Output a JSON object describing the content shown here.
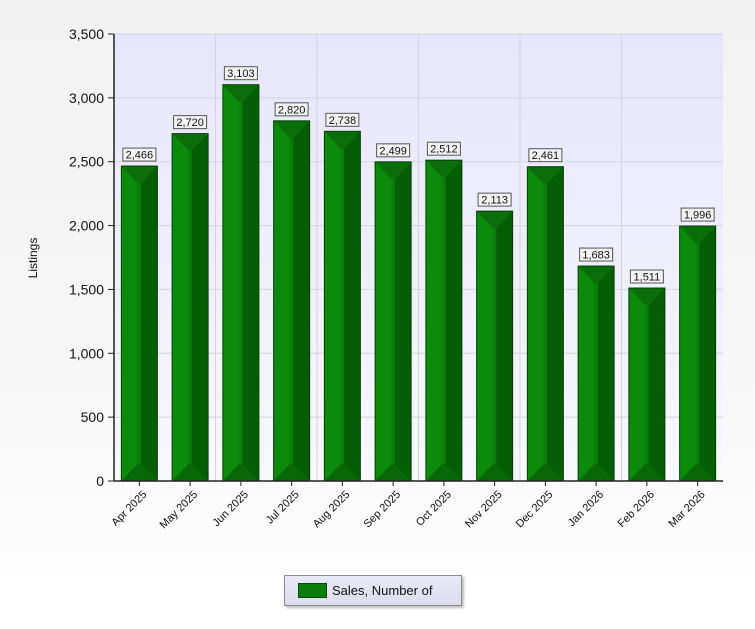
{
  "chart_data": {
    "type": "bar",
    "title": "",
    "xlabel": "",
    "ylabel": "Listings",
    "ylim": [
      0,
      3500
    ],
    "yticks": [
      0,
      500,
      1000,
      1500,
      2000,
      2500,
      3000,
      3500
    ],
    "ytick_labels": [
      "0",
      "500",
      "1,000",
      "1,500",
      "2,000",
      "2,500",
      "3,000",
      "3,500"
    ],
    "categories": [
      "Apr 2025",
      "May 2025",
      "Jun 2025",
      "Jul 2025",
      "Aug 2025",
      "Sep 2025",
      "Oct 2025",
      "Nov 2025",
      "Dec 2025",
      "Jan 2026",
      "Feb 2026",
      "Mar 2026"
    ],
    "series": [
      {
        "name": "Sales, Number of",
        "values": [
          2466,
          2720,
          3103,
          2820,
          2738,
          2499,
          2512,
          2113,
          2461,
          1683,
          1511,
          1996
        ],
        "labels": [
          "2,466",
          "2,720",
          "3,103",
          "2,820",
          "2,738",
          "2,499",
          "2,512",
          "2,113",
          "2,461",
          "1,683",
          "1,511",
          "1,996"
        ],
        "color": "#0a7d0a"
      }
    ],
    "grid": true,
    "legend_position": "bottom-center",
    "plot_background": "#ececfa"
  }
}
